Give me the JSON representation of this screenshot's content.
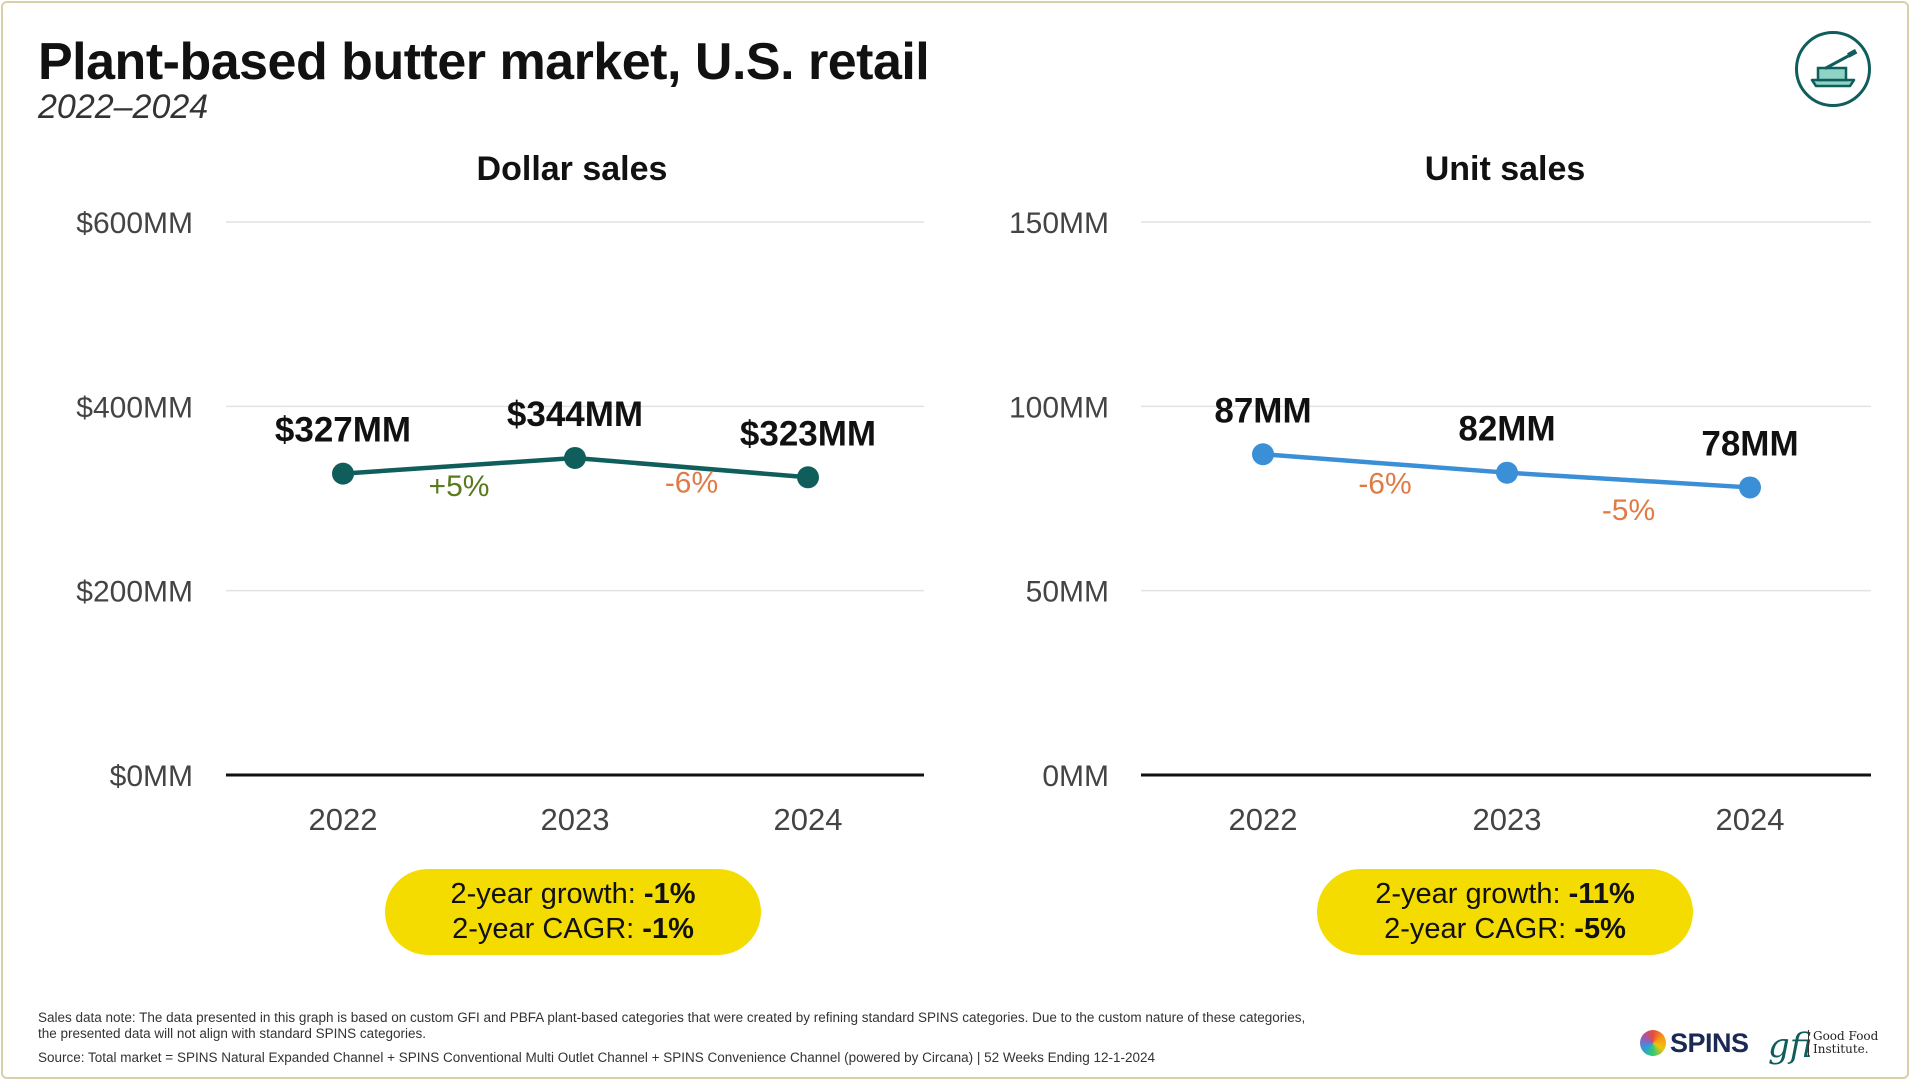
{
  "title": "Plant-based butter market, U.S. retail",
  "subtitle": "2022–2024",
  "logo_icon": "butter-dish-icon",
  "chart_data": [
    {
      "type": "line",
      "title": "Dollar sales",
      "categories": [
        "2022",
        "2023",
        "2024"
      ],
      "values": [
        327,
        344,
        323
      ],
      "value_labels": [
        "$327MM",
        "$344MM",
        "$323MM"
      ],
      "change_labels": [
        "+5%",
        "-6%"
      ],
      "change_colors": [
        "#5a7a1e",
        "#e07b45"
      ],
      "yticks": [
        0,
        200,
        400,
        600
      ],
      "ytick_labels": [
        "$0MM",
        "$200MM",
        "$400MM",
        "$600MM"
      ],
      "ylim": [
        0,
        600
      ],
      "color": "#0f5e5c",
      "summary": {
        "growth_label": "2-year growth: ",
        "growth_value": "-1%",
        "cagr_label": "2-year CAGR: ",
        "cagr_value": "-1%"
      }
    },
    {
      "type": "line",
      "title": "Unit sales",
      "categories": [
        "2022",
        "2023",
        "2024"
      ],
      "values": [
        87,
        82,
        78
      ],
      "value_labels": [
        "87MM",
        "82MM",
        "78MM"
      ],
      "change_labels": [
        "-6%",
        "-5%"
      ],
      "change_colors": [
        "#e07b45",
        "#e07b45"
      ],
      "yticks": [
        0,
        50,
        100,
        150
      ],
      "ytick_labels": [
        "0MM",
        "50MM",
        "100MM",
        "150MM"
      ],
      "ylim": [
        0,
        150
      ],
      "color": "#3a8fd6",
      "summary": {
        "growth_label": "2-year growth: ",
        "growth_value": "-11%",
        "cagr_label": "2-year CAGR: ",
        "cagr_value": "-5%"
      }
    }
  ],
  "footnote": {
    "note_line1": "Sales data note: The data presented in this graph is based on custom GFI and PBFA plant-based categories that were created by refining standard SPINS categories. Due to the custom nature of these categories,",
    "note_line2": "the presented data will not align with standard SPINS categories.",
    "source": "Source: Total market = SPINS Natural Expanded Channel + SPINS Conventional Multi Outlet Channel + SPINS Convenience Channel (powered by Circana) | 52 Weeks Ending 12-1-2024"
  },
  "brands": {
    "spins": "SPINS",
    "gfi": "gfi",
    "gfi_line1": "Good Food",
    "gfi_line2": "Institute."
  }
}
